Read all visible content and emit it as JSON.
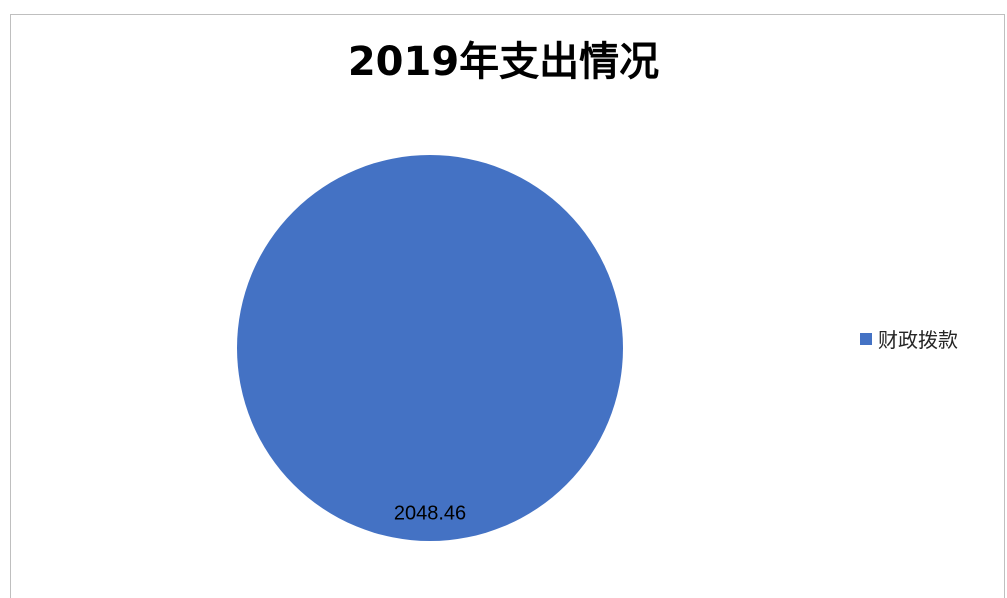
{
  "chart_data": {
    "type": "pie",
    "title": "2019年支出情况",
    "categories": [
      "财政拨款"
    ],
    "values": [
      2048.46
    ],
    "data_labels": [
      "2048.46"
    ],
    "colors": [
      "#4472c4"
    ],
    "legend_position": "right"
  }
}
